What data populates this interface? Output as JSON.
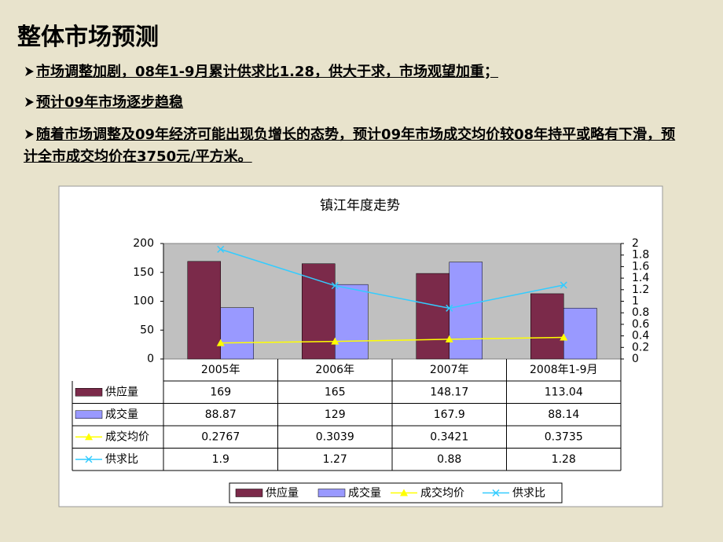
{
  "title": "整体市场预测",
  "bullets": [
    "市场调整加剧，08年1-9月累计供求比1.28，供大于求，市场观望加重；",
    "预计09年市场逐步趋稳",
    "随着市场调整及09年经济可能出现负增长的态势，预计09年市场成交均价较08年持平或略有下滑，预计全市成交均价在3750元/平方米。"
  ],
  "chart_data": {
    "type": "bar",
    "title": "镇江年度走势",
    "categories": [
      "2005年",
      "2006年",
      "2007年",
      "2008年1-9月"
    ],
    "series": [
      {
        "name": "供应量",
        "type": "bar",
        "color": "#7b2a4a",
        "values": [
          169,
          165,
          148.17,
          113.04
        ]
      },
      {
        "name": "成交量",
        "type": "bar",
        "color": "#9999ff",
        "values": [
          88.87,
          129,
          167.9,
          88.14
        ]
      },
      {
        "name": "成交均价",
        "type": "line",
        "axis": "y2",
        "marker": "triangle",
        "color": "#ffff00",
        "values": [
          0.2767,
          0.3039,
          0.3421,
          0.3735
        ]
      },
      {
        "name": "供求比",
        "type": "line",
        "axis": "y2",
        "marker": "x",
        "color": "#33ccff",
        "values": [
          1.9,
          1.27,
          0.88,
          1.28
        ]
      }
    ],
    "ylim": [
      0,
      200
    ],
    "yticks": [
      0,
      50,
      100,
      150,
      200
    ],
    "y2lim": [
      0,
      2
    ],
    "y2ticks": [
      0,
      0.2,
      0.4,
      0.6,
      0.8,
      1,
      1.2,
      1.4,
      1.6,
      1.8,
      2
    ],
    "legend": "bottom"
  }
}
